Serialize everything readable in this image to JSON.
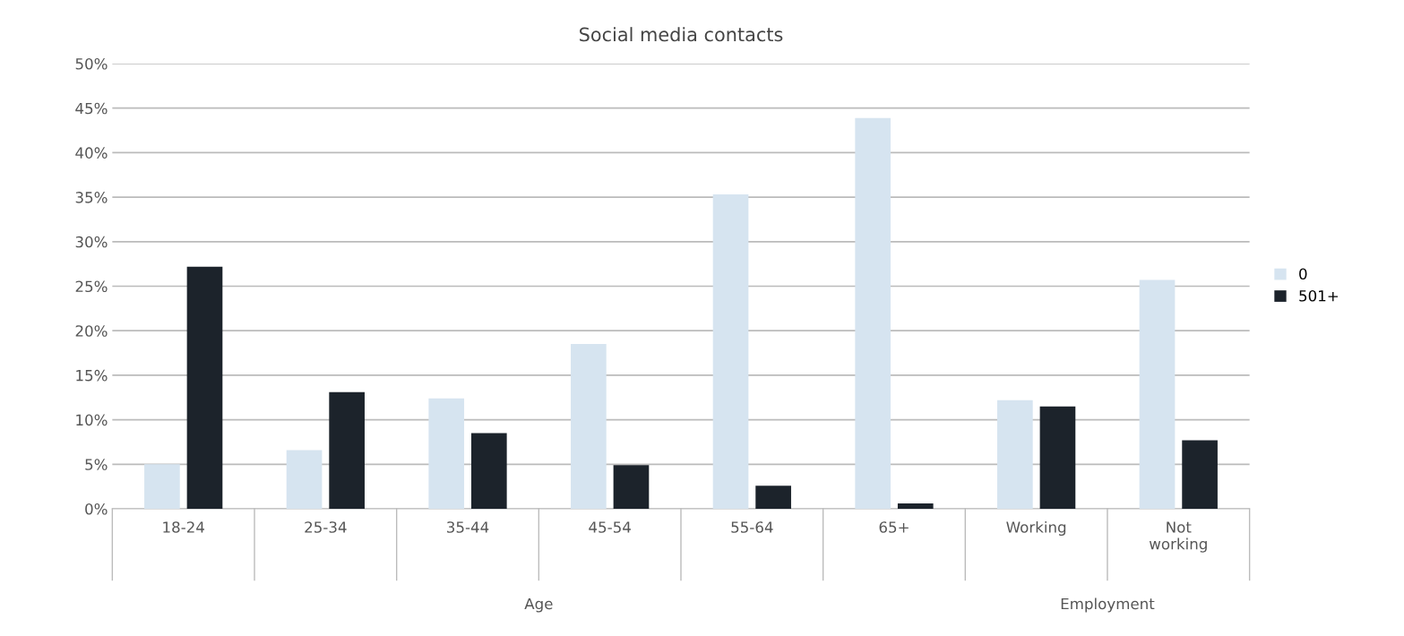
{
  "chart_data": {
    "type": "bar",
    "title": "Social media contacts",
    "categories": [
      "18-24",
      "25-34",
      "35-44",
      "45-54",
      "55-64",
      "65+",
      "Working",
      "Not\nworking"
    ],
    "series": [
      {
        "name": "0",
        "color": "#d6e4f0",
        "values": [
          5.0,
          6.6,
          12.4,
          18.5,
          35.3,
          43.9,
          12.2,
          25.7
        ]
      },
      {
        "name": "501+",
        "color": "#1c232b",
        "values": [
          27.2,
          13.1,
          8.5,
          4.9,
          2.6,
          0.6,
          11.5,
          7.7
        ]
      }
    ],
    "ylim": [
      0,
      50
    ],
    "yticks": [
      {
        "value": 0,
        "label": "0%"
      },
      {
        "value": 5,
        "label": "5%"
      },
      {
        "value": 10,
        "label": "10%"
      },
      {
        "value": 15,
        "label": "15%"
      },
      {
        "value": 20,
        "label": "20%"
      },
      {
        "value": 25,
        "label": "25%"
      },
      {
        "value": 30,
        "label": "30%"
      },
      {
        "value": 35,
        "label": "35%"
      },
      {
        "value": 40,
        "label": "40%"
      },
      {
        "value": 45,
        "label": "45%"
      },
      {
        "value": 50,
        "label": "50%"
      }
    ],
    "grid": "y",
    "legend": "right",
    "annotations": [
      "Age",
      "Employment"
    ]
  }
}
